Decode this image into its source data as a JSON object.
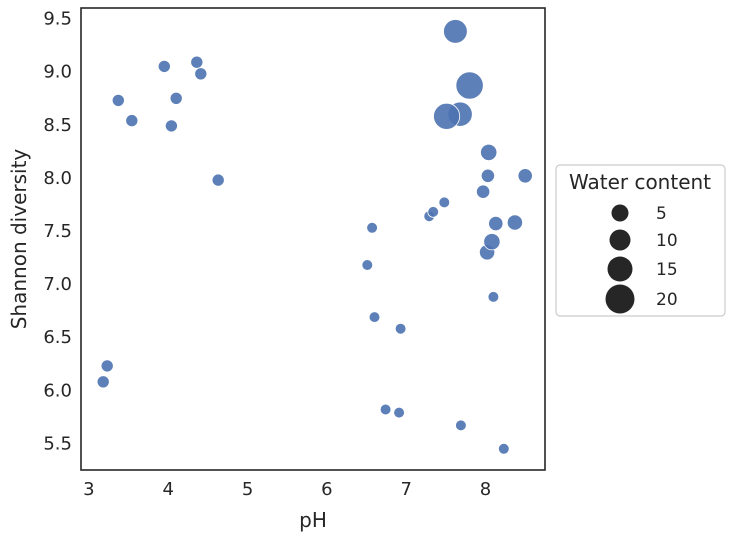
{
  "chart_data": {
    "type": "scatter",
    "title": "",
    "xlabel": "pH",
    "ylabel": "Shannon diversity",
    "xlim": [
      2.9,
      8.75
    ],
    "ylim": [
      5.25,
      9.6
    ],
    "xticks": [
      3,
      4,
      5,
      6,
      7,
      8
    ],
    "yticks": [
      5.5,
      6.0,
      6.5,
      7.0,
      7.5,
      8.0,
      8.5,
      9.0,
      9.5
    ],
    "x_tick_labels": [
      "3",
      "4",
      "5",
      "6",
      "7",
      "8"
    ],
    "y_tick_labels": [
      "5.5",
      "6.0",
      "6.5",
      "7.0",
      "7.5",
      "8.0",
      "8.5",
      "9.0",
      "9.5"
    ],
    "grid": false,
    "marker_color": "#4c72b0",
    "size_encoding": "Water content",
    "legend": {
      "title": "Water content",
      "placement": "outside-right",
      "entries": [
        {
          "label": "5",
          "value": 5
        },
        {
          "label": "10",
          "value": 10
        },
        {
          "label": "15",
          "value": 15
        },
        {
          "label": "20",
          "value": 20
        }
      ]
    },
    "points": [
      {
        "x": 3.18,
        "y": 6.08,
        "size": 2
      },
      {
        "x": 3.23,
        "y": 6.23,
        "size": 2
      },
      {
        "x": 3.37,
        "y": 8.73,
        "size": 2
      },
      {
        "x": 3.54,
        "y": 8.54,
        "size": 2
      },
      {
        "x": 3.95,
        "y": 9.05,
        "size": 2
      },
      {
        "x": 4.04,
        "y": 8.49,
        "size": 2
      },
      {
        "x": 4.1,
        "y": 8.75,
        "size": 2
      },
      {
        "x": 4.36,
        "y": 9.09,
        "size": 2
      },
      {
        "x": 4.41,
        "y": 8.98,
        "size": 2
      },
      {
        "x": 4.63,
        "y": 7.98,
        "size": 2
      },
      {
        "x": 6.51,
        "y": 7.18,
        "size": 1
      },
      {
        "x": 6.57,
        "y": 7.53,
        "size": 1
      },
      {
        "x": 6.6,
        "y": 6.69,
        "size": 1
      },
      {
        "x": 6.74,
        "y": 5.82,
        "size": 1
      },
      {
        "x": 6.91,
        "y": 5.79,
        "size": 1
      },
      {
        "x": 6.93,
        "y": 6.58,
        "size": 1
      },
      {
        "x": 7.29,
        "y": 7.64,
        "size": 1
      },
      {
        "x": 7.34,
        "y": 7.68,
        "size": 1
      },
      {
        "x": 7.48,
        "y": 7.77,
        "size": 1
      },
      {
        "x": 7.51,
        "y": 8.58,
        "size": 20
      },
      {
        "x": 7.62,
        "y": 9.38,
        "size": 16
      },
      {
        "x": 7.68,
        "y": 8.6,
        "size": 17
      },
      {
        "x": 7.69,
        "y": 5.67,
        "size": 1
      },
      {
        "x": 7.8,
        "y": 8.87,
        "size": 22
      },
      {
        "x": 7.97,
        "y": 7.87,
        "size": 3
      },
      {
        "x": 8.02,
        "y": 7.3,
        "size": 5
      },
      {
        "x": 8.03,
        "y": 8.02,
        "size": 3
      },
      {
        "x": 8.04,
        "y": 8.24,
        "size": 6
      },
      {
        "x": 8.08,
        "y": 7.4,
        "size": 6
      },
      {
        "x": 8.1,
        "y": 6.88,
        "size": 1
      },
      {
        "x": 8.13,
        "y": 7.57,
        "size": 4
      },
      {
        "x": 8.23,
        "y": 5.45,
        "size": 1
      },
      {
        "x": 8.37,
        "y": 7.58,
        "size": 5
      },
      {
        "x": 8.5,
        "y": 8.02,
        "size": 4
      }
    ]
  }
}
